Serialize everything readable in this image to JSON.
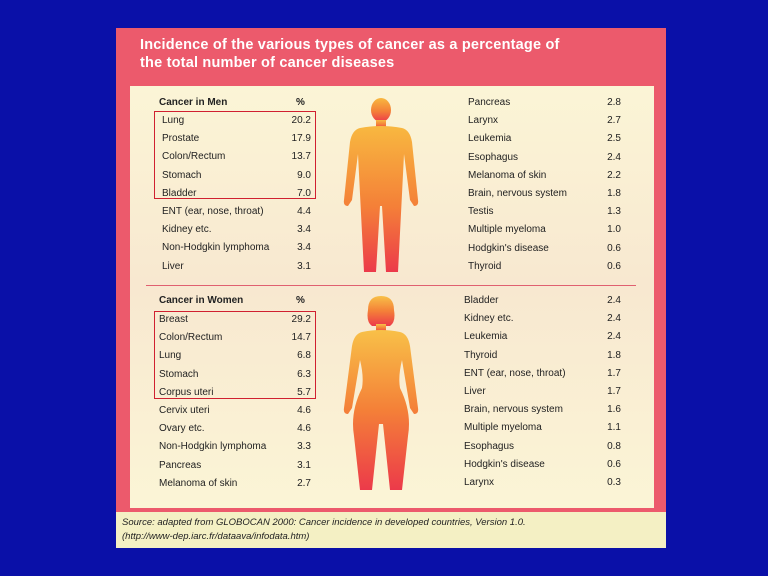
{
  "title_line1": "Incidence of the various types of cancer as a percentage of",
  "title_line2": "the total number of cancer diseases",
  "men": {
    "header": "Cancer in Men",
    "pct_header": "%",
    "left": [
      {
        "name": "Lung",
        "value": "20.2"
      },
      {
        "name": "Prostate",
        "value": "17.9"
      },
      {
        "name": "Colon/Rectum",
        "value": "13.7"
      },
      {
        "name": "Stomach",
        "value": "9.0"
      },
      {
        "name": "Bladder",
        "value": "7.0"
      },
      {
        "name": "ENT (ear, nose, throat)",
        "value": "4.4"
      },
      {
        "name": "Kidney etc.",
        "value": "3.4"
      },
      {
        "name": "Non-Hodgkin lymphoma",
        "value": "3.4"
      },
      {
        "name": "Liver",
        "value": "3.1"
      }
    ],
    "right": [
      {
        "name": "Pancreas",
        "value": "2.8"
      },
      {
        "name": "Larynx",
        "value": "2.7"
      },
      {
        "name": "Leukemia",
        "value": "2.5"
      },
      {
        "name": "Esophagus",
        "value": "2.4"
      },
      {
        "name": "Melanoma of skin",
        "value": "2.2"
      },
      {
        "name": "Brain, nervous system",
        "value": "1.8"
      },
      {
        "name": "Testis",
        "value": "1.3"
      },
      {
        "name": "Multiple myeloma",
        "value": "1.0"
      },
      {
        "name": "Hodgkin's disease",
        "value": "0.6"
      },
      {
        "name": "Thyroid",
        "value": "0.6"
      }
    ]
  },
  "women": {
    "header": "Cancer in Women",
    "pct_header": "%",
    "left": [
      {
        "name": "Breast",
        "value": "29.2"
      },
      {
        "name": "Colon/Rectum",
        "value": "14.7"
      },
      {
        "name": "Lung",
        "value": "6.8"
      },
      {
        "name": "Stomach",
        "value": "6.3"
      },
      {
        "name": "Corpus uteri",
        "value": "5.7"
      },
      {
        "name": "Cervix uteri",
        "value": "4.6"
      },
      {
        "name": "Ovary etc.",
        "value": "4.6"
      },
      {
        "name": "Non-Hodgkin lymphoma",
        "value": "3.3"
      },
      {
        "name": "Pancreas",
        "value": "3.1"
      },
      {
        "name": "Melanoma of skin",
        "value": "2.7"
      }
    ],
    "right": [
      {
        "name": "Bladder",
        "value": "2.4"
      },
      {
        "name": "Kidney etc.",
        "value": "2.4"
      },
      {
        "name": "Leukemia",
        "value": "2.4"
      },
      {
        "name": "Thyroid",
        "value": "1.8"
      },
      {
        "name": "ENT (ear, nose, throat)",
        "value": "1.7"
      },
      {
        "name": "Liver",
        "value": "1.7"
      },
      {
        "name": "Brain, nervous system",
        "value": "1.6"
      },
      {
        "name": "Multiple myeloma",
        "value": "1.1"
      },
      {
        "name": "Esophagus",
        "value": "0.8"
      },
      {
        "name": "Hodgkin's disease",
        "value": "0.6"
      },
      {
        "name": "Larynx",
        "value": "0.3"
      }
    ]
  },
  "source_line1": "Source: adapted from GLOBOCAN 2000: Cancer incidence in developed countries, Version 1.0.",
  "source_line2": "(http://www-dep.iarc.fr/dataava/infodata.htm)",
  "colors": {
    "background": "#0a10a8",
    "header_band": "#ec5a6c",
    "highlight_box": "#d02030",
    "panel": "#fbf8d8"
  }
}
